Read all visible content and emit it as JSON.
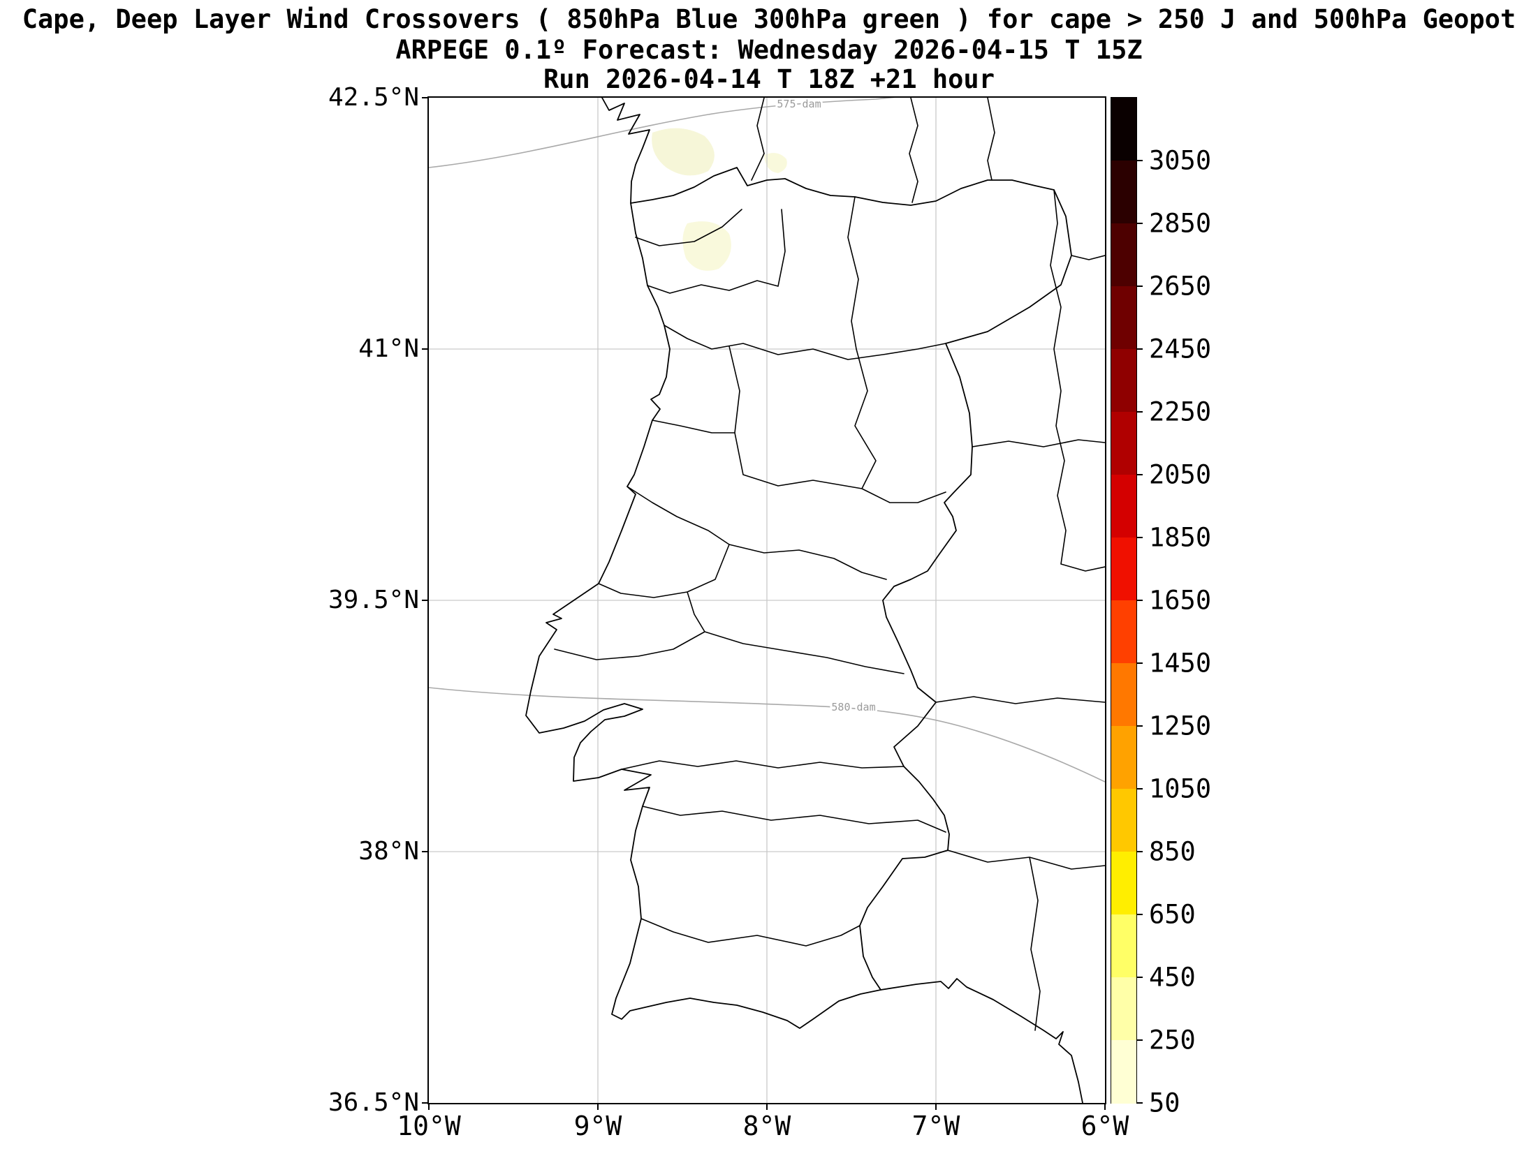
{
  "title": {
    "line1": "Cape, Deep Layer Wind Crossovers ( 850hPa Blue 300hPa green ) for cape > 250 J and 500hPa Geopot",
    "line2": "ARPEGE 0.1º Forecast: Wednesday 2026-04-15 T 15Z",
    "line3": "Run 2026-04-14 T 18Z +21 hour"
  },
  "map": {
    "y_ticks": [
      "42.5°N",
      "41°N",
      "39.5°N",
      "38°N",
      "36.5°N"
    ],
    "x_ticks": [
      "10°W",
      "9°W",
      "8°W",
      "7°W",
      "6°W"
    ],
    "contour_labels": {
      "c575": "575 dam",
      "c580": "580 dam"
    }
  },
  "colorbar": {
    "tick_labels": [
      "3050",
      "2850",
      "2650",
      "2450",
      "2250",
      "2050",
      "1850",
      "1650",
      "1450",
      "1250",
      "1050",
      "850",
      "650",
      "450",
      "250",
      "50"
    ],
    "colors_top_to_bottom": [
      "#0a0000",
      "#2b0000",
      "#4d0000",
      "#6f0000",
      "#8f0000",
      "#b00000",
      "#d40000",
      "#f01000",
      "#ff4000",
      "#ff7800",
      "#ffa200",
      "#ffc800",
      "#ffee00",
      "#ffff66",
      "#ffffa8",
      "#ffffd4"
    ]
  },
  "colors": {
    "gridline": "#c9c9c9",
    "geopotential_contour": "#a9a9a9",
    "boundary": "#000000",
    "cape_low_shading": "#f6f6d8",
    "background": "#ffffff"
  }
}
